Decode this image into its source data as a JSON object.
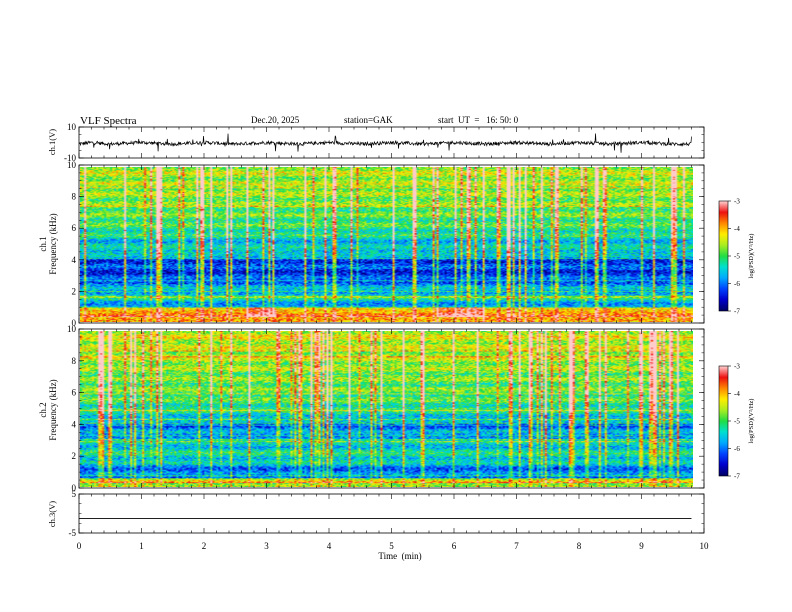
{
  "header": {
    "title": "VLF  Spectra",
    "date": "Dec.20, 2025",
    "station": "station=GAK",
    "start_ut": "start  UT  =   16: 50: 0"
  },
  "colors": {
    "spectrogram_scale": [
      "#000066",
      "#0000cc",
      "#0044ff",
      "#00aaff",
      "#00e0d0",
      "#22dd44",
      "#aaee22",
      "#ffee00",
      "#ff8800",
      "#ee1111",
      "#ffcccc"
    ],
    "trace": "#000000"
  },
  "chart_data": [
    {
      "type": "line",
      "name": "ch1-waveform",
      "ylabel": "ch.1(V)",
      "ylim": [
        -10,
        10
      ],
      "yticks": [
        "10",
        "-10"
      ],
      "x": [
        0,
        0.2,
        0.5,
        1,
        1.5,
        2,
        2.5,
        3,
        3.5,
        4,
        4.5,
        5,
        5.5,
        6,
        6.5,
        7,
        7.5,
        8,
        8.5,
        9,
        9.5,
        9.8
      ],
      "values": [
        -1,
        0,
        -1,
        0,
        -1,
        0,
        -1,
        0,
        -1,
        0,
        -1,
        0,
        -1,
        0,
        -1,
        0,
        -1,
        0,
        -1,
        0,
        -1,
        -1
      ]
    },
    {
      "type": "heatmap",
      "name": "ch1-spectrogram",
      "ylabel": "ch.1\nFrequency (kHz)",
      "ylim": [
        0,
        10
      ],
      "yticks": [
        "0",
        "2",
        "4",
        "6",
        "8",
        "10"
      ],
      "xlim": [
        0,
        10
      ],
      "data_xmax": 9.8,
      "colorbar": {
        "label": "log(PSD)(V²/Hz)",
        "range": [
          -7,
          -3
        ],
        "ticks": [
          "-3",
          "-4",
          "-5",
          "-6",
          "-7"
        ]
      },
      "freq_profile_kHz": [
        0,
        0.5,
        1,
        1.5,
        2,
        3,
        4,
        4.5,
        5,
        6,
        7,
        8,
        9,
        10
      ],
      "freq_profile_log_psd": [
        -4,
        -4.5,
        -5.8,
        -5.4,
        -5.6,
        -6.3,
        -6.2,
        -5.3,
        -5.6,
        -5.1,
        -4.9,
        -4.7,
        -4.6,
        -4.5
      ]
    },
    {
      "type": "heatmap",
      "name": "ch2-spectrogram",
      "ylabel": "ch.2\nFrequency (kHz)",
      "ylim": [
        0,
        10
      ],
      "yticks": [
        "0",
        "2",
        "4",
        "6",
        "8",
        "10"
      ],
      "xlim": [
        0,
        10
      ],
      "data_xmax": 9.8,
      "colorbar": {
        "label": "log(PSD)(V²/Hz)",
        "range": [
          -7,
          -3
        ],
        "ticks": [
          "-3",
          "-4",
          "-5",
          "-6",
          "-7"
        ]
      },
      "freq_profile_kHz": [
        0,
        0.5,
        1,
        1.5,
        2,
        3,
        4,
        4.5,
        5,
        6,
        7,
        8,
        9,
        10
      ],
      "freq_profile_log_psd": [
        -4.6,
        -5.8,
        -6.1,
        -5.6,
        -5.3,
        -5.6,
        -6,
        -5.4,
        -5.2,
        -4.9,
        -4.8,
        -4.6,
        -4.5,
        -4.4
      ]
    },
    {
      "type": "line",
      "name": "ch3-waveform",
      "ylabel": "ch.3(V)",
      "ylim": [
        -5,
        5
      ],
      "yticks": [
        "5",
        "-5"
      ],
      "x": [
        0,
        9.8
      ],
      "values": [
        -1.3,
        -1.3
      ]
    }
  ],
  "x_axis": {
    "label": "Time  (min)",
    "ticks": [
      "0",
      "1",
      "2",
      "3",
      "4",
      "5",
      "6",
      "7",
      "8",
      "9",
      "10"
    ],
    "range": [
      0,
      10
    ]
  }
}
